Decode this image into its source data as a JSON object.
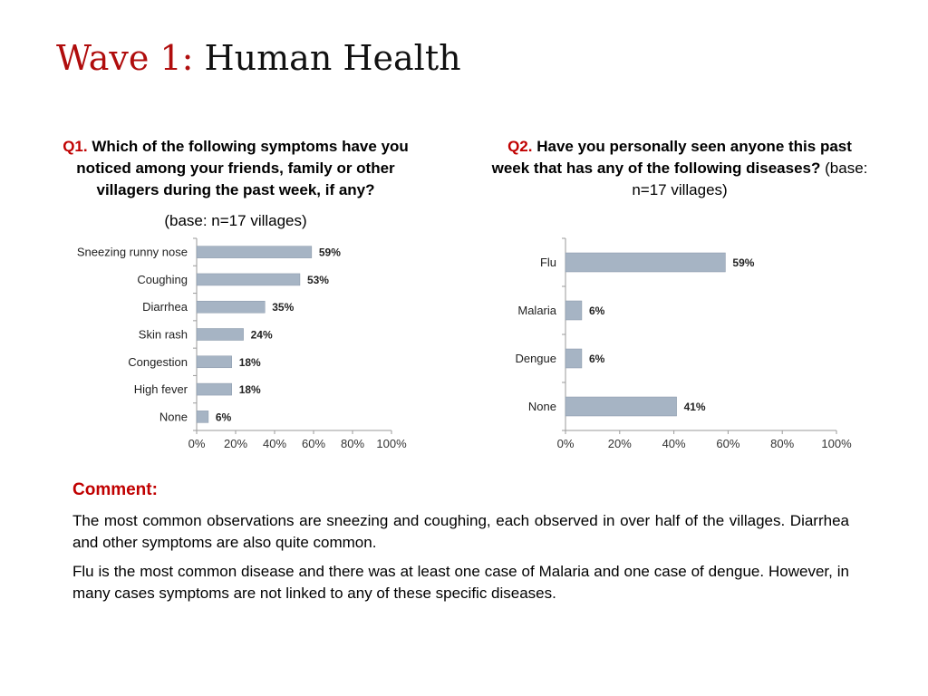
{
  "title": {
    "prefix": "Wave 1:",
    "main": "Human Health"
  },
  "q1": {
    "number": "Q1.",
    "text": "Which of the following symptoms have you noticed among your friends, family or other villagers during the past week, if any?",
    "base": "(base: n=17 villages)"
  },
  "q2": {
    "number": "Q2.",
    "text": "Have you personally seen anyone this past week that has any of the following diseases?",
    "base": "(base: n=17 villages)"
  },
  "comment": {
    "heading": "Comment:",
    "paragraphs": [
      "The most common observations are sneezing and coughing, each observed in over half of the villages. Diarrhea and other symptoms are also quite common.",
      "Flu is the most common disease and there was at least one case of Malaria and one case of dengue. However, in many cases symptoms are not linked to any of these specific diseases."
    ]
  },
  "colors": {
    "bar": "#a6b4c4",
    "bar_stroke": "#8796a8",
    "accent": "#c00000",
    "axis": "#9a9a9a"
  },
  "chart_data": [
    {
      "type": "bar",
      "orientation": "horizontal",
      "categories": [
        "Sneezing runny nose",
        "Coughing",
        "Diarrhea",
        "Skin rash",
        "Congestion",
        "High fever",
        "None"
      ],
      "values": [
        59,
        53,
        35,
        24,
        18,
        18,
        6
      ],
      "value_labels": [
        "59%",
        "53%",
        "35%",
        "24%",
        "18%",
        "18%",
        "6%"
      ],
      "xlim": [
        0,
        100
      ],
      "xticks": [
        "0%",
        "20%",
        "40%",
        "60%",
        "80%",
        "100%"
      ],
      "grid": false,
      "title": "",
      "xlabel": "",
      "ylabel": ""
    },
    {
      "type": "bar",
      "orientation": "horizontal",
      "categories": [
        "Flu",
        "Malaria",
        "Dengue",
        "None"
      ],
      "values": [
        59,
        6,
        6,
        41
      ],
      "value_labels": [
        "59%",
        "6%",
        "6%",
        "41%"
      ],
      "xlim": [
        0,
        100
      ],
      "xticks": [
        "0%",
        "20%",
        "40%",
        "60%",
        "80%",
        "100%"
      ],
      "grid": false,
      "title": "",
      "xlabel": "",
      "ylabel": ""
    }
  ]
}
